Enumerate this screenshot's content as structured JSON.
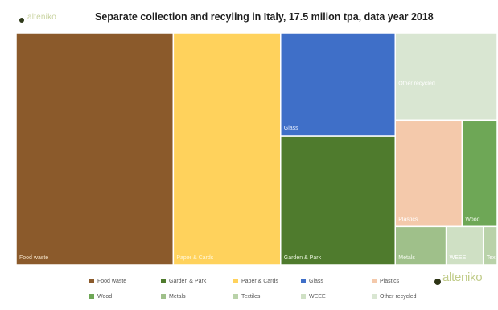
{
  "header": {
    "logo_text": "alteniko",
    "title": "Separate collection and recyling in Italy, 17.5 milion tpa, data year 2018"
  },
  "footer": {
    "logo_text": "alteniko"
  },
  "colors": {
    "food_waste": "#8b5a2b",
    "paper_cards": "#ffd25c",
    "glass": "#3f6fc8",
    "garden_park": "#4f7b2d",
    "other_recycled": "#d9e6d2",
    "plastics": "#f4c9ab",
    "wood": "#6ea756",
    "metals": "#9fc08a",
    "textiles": "#b9d2a9",
    "weee": "#cfe0c4"
  },
  "chart_data": {
    "type": "treemap",
    "title": "Separate collection and recyling in Italy, 17.5 milion tpa, data year 2018",
    "items": [
      {
        "label": "Food waste",
        "value": 41.0,
        "color": "#8b5a2b"
      },
      {
        "label": "Paper & Cards",
        "value": 28.0,
        "color": "#ffd25c"
      },
      {
        "label": "Glass",
        "value": 13.3,
        "color": "#3f6fc8"
      },
      {
        "label": "Garden & Park",
        "value": 16.6,
        "color": "#4f7b2d"
      },
      {
        "label": "Other recycled",
        "value": 10.0,
        "color": "#d9e6d2"
      },
      {
        "label": "Plastics",
        "value": 8.0,
        "color": "#f4c9ab"
      },
      {
        "label": "Wood",
        "value": 4.2,
        "color": "#6ea756"
      },
      {
        "label": "Metals",
        "value": 2.2,
        "color": "#9fc08a"
      },
      {
        "label": "WEEE",
        "value": 1.6,
        "color": "#cfe0c4"
      },
      {
        "label": "Tex",
        "value": 0.6,
        "color": "#b9d2a9"
      }
    ],
    "legend": [
      {
        "label": "Food waste",
        "color": "#8b5a2b"
      },
      {
        "label": "Garden & Park",
        "color": "#4f7b2d"
      },
      {
        "label": "Paper & Cards",
        "color": "#ffd25c"
      },
      {
        "label": "Glass",
        "color": "#3f6fc8"
      },
      {
        "label": "Plastics",
        "color": "#f4c9ab"
      },
      {
        "label": "Wood",
        "color": "#6ea756"
      },
      {
        "label": "Metals",
        "color": "#9fc08a"
      },
      {
        "label": "Textiles",
        "color": "#b9d2a9"
      },
      {
        "label": "WEEE",
        "color": "#cfe0c4"
      },
      {
        "label": "Other recycled",
        "color": "#d9e6d2"
      }
    ],
    "legend_position": "bottom"
  }
}
